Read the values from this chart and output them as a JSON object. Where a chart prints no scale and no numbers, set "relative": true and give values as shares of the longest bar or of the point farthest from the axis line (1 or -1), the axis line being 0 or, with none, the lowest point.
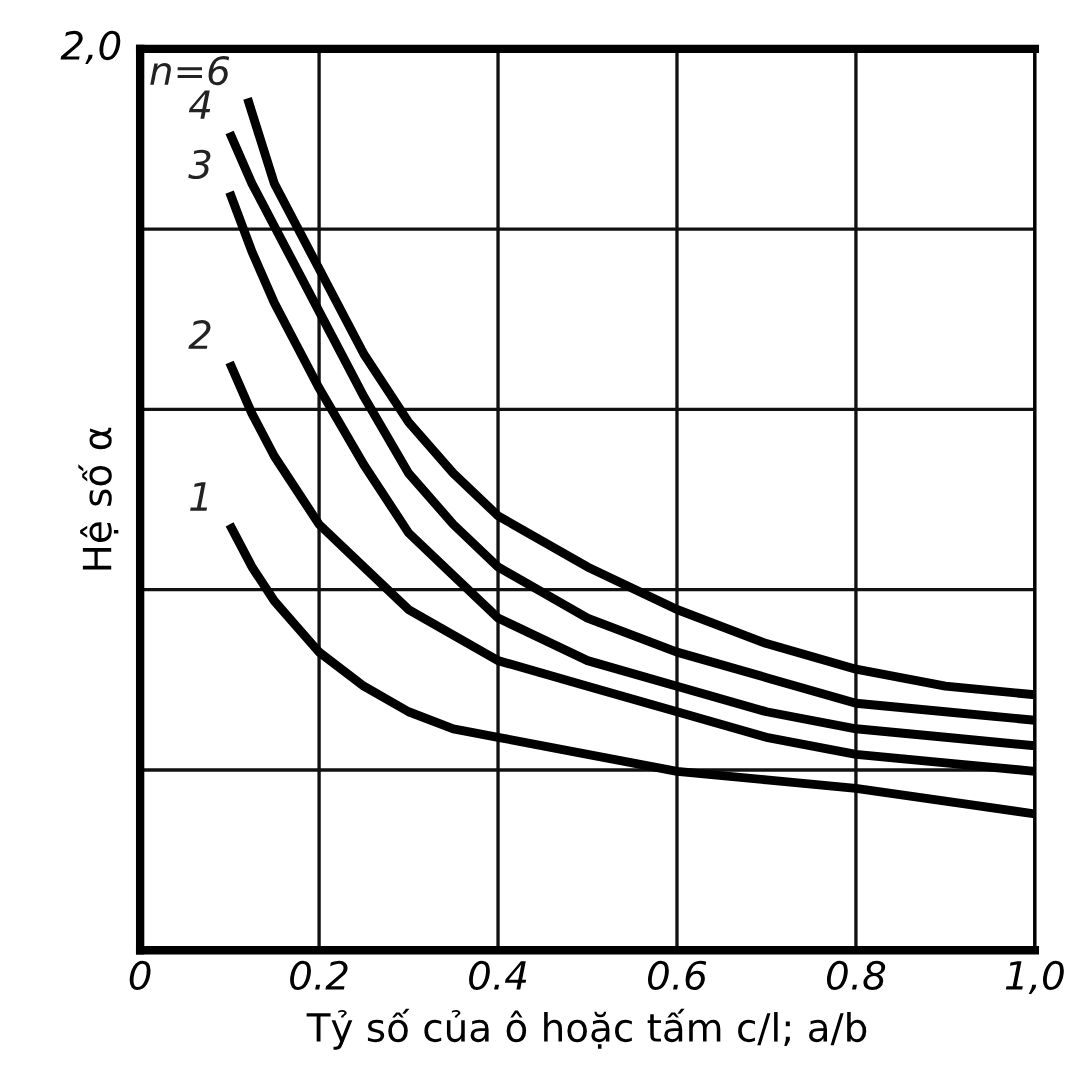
{
  "chart_data": {
    "type": "line",
    "xlabel": "Tỷ số của ô hoặc tấm c/l; a/b",
    "ylabel": "Hệ số α",
    "relative": true,
    "annotations": [
      "2,0"
    ],
    "xlim": [
      0,
      1.0
    ],
    "xticks": [
      {
        "value": 0,
        "label": "0"
      },
      0.2,
      0.4,
      0.6,
      0.8,
      {
        "value": 1.0,
        "label": "1,0"
      }
    ],
    "grid": true,
    "legend": false,
    "marker": "none",
    "line_style": "solid",
    "series": [
      {
        "name": "n=6",
        "color": "#000000",
        "x": [
          0.12,
          0.15,
          0.175,
          0.2,
          0.25,
          0.3,
          0.35,
          0.4,
          0.5,
          0.6,
          0.7,
          0.8,
          0.9,
          1.0
        ],
        "values": [
          1,
          0.9,
          0.85,
          0.8,
          0.7,
          0.62,
          0.56,
          0.51,
          0.45,
          0.4,
          0.36,
          0.33,
          0.31,
          0.3
        ]
      },
      {
        "name": "4",
        "color": "#000000",
        "x": [
          0.1,
          0.125,
          0.15,
          0.175,
          0.2,
          0.25,
          0.3,
          0.35,
          0.4,
          0.5,
          0.6,
          0.7,
          0.8,
          0.9,
          1.0
        ],
        "values": [
          0.96,
          0.9,
          0.85,
          0.8,
          0.75,
          0.65,
          0.56,
          0.5,
          0.45,
          0.39,
          0.35,
          0.32,
          0.29,
          0.28,
          0.27
        ]
      },
      {
        "name": "3",
        "color": "#000000",
        "x": [
          0.1,
          0.125,
          0.15,
          0.175,
          0.2,
          0.25,
          0.3,
          0.35,
          0.4,
          0.5,
          0.6,
          0.7,
          0.8,
          0.9,
          1.0
        ],
        "values": [
          0.89,
          0.82,
          0.76,
          0.71,
          0.66,
          0.57,
          0.49,
          0.44,
          0.39,
          0.34,
          0.31,
          0.28,
          0.26,
          0.25,
          0.24
        ]
      },
      {
        "name": "2",
        "color": "#000000",
        "x": [
          0.1,
          0.125,
          0.15,
          0.175,
          0.2,
          0.25,
          0.3,
          0.35,
          0.4,
          0.5,
          0.6,
          0.7,
          0.8,
          0.9,
          1.0
        ],
        "values": [
          0.69,
          0.63,
          0.58,
          0.54,
          0.5,
          0.45,
          0.4,
          0.37,
          0.34,
          0.31,
          0.28,
          0.25,
          0.23,
          0.22,
          0.21
        ]
      },
      {
        "name": "1",
        "color": "#000000",
        "x": [
          0.1,
          0.125,
          0.15,
          0.175,
          0.2,
          0.25,
          0.3,
          0.35,
          0.4,
          0.5,
          0.6,
          0.7,
          0.8,
          0.9,
          1.0
        ],
        "values": [
          0.5,
          0.45,
          0.41,
          0.38,
          0.35,
          0.31,
          0.28,
          0.26,
          0.25,
          0.23,
          0.21,
          0.2,
          0.19,
          0.175,
          0.16
        ]
      }
    ]
  }
}
